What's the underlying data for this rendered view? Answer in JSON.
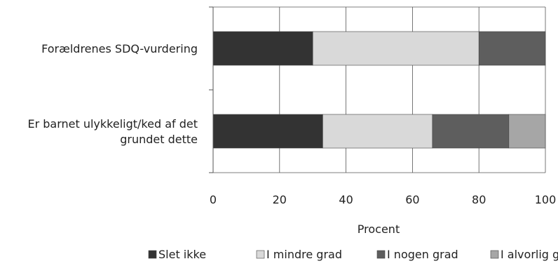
{
  "chart_data": {
    "type": "bar",
    "orientation": "horizontal",
    "stacked": true,
    "title": "",
    "xlabel": "Procent",
    "ylabel": "",
    "xlim": [
      0,
      100
    ],
    "xticks": [
      0,
      20,
      40,
      60,
      80,
      100
    ],
    "grid": true,
    "legend_position": "bottom",
    "categories": [
      [
        "Forældrenes SDQ-vurdering"
      ],
      [
        "Er barnet ulykkeligt/ked af det",
        "grundet dette"
      ]
    ],
    "series": [
      {
        "name": "Slet ikke",
        "color": "#333333",
        "values": [
          30,
          33
        ]
      },
      {
        "name": "I mindre grad",
        "color": "#d9d9d9",
        "values": [
          50,
          33
        ]
      },
      {
        "name": "I nogen grad",
        "color": "#5e5e5e",
        "values": [
          20,
          23
        ]
      },
      {
        "name": "I alvorlig grad",
        "color": "#a6a6a6",
        "values": [
          0,
          11
        ]
      }
    ]
  }
}
